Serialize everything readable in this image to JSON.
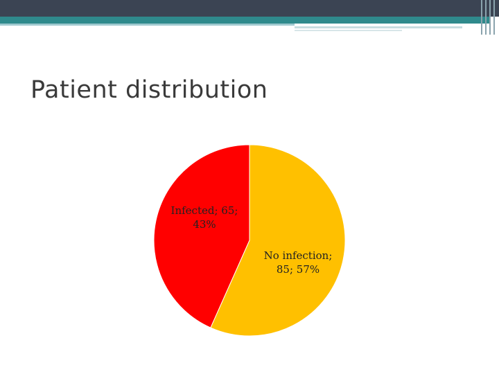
{
  "slide": {
    "title": "Patient distribution"
  },
  "colors": {
    "header_dark": "#3b4453",
    "header_teal": "#2f8a8c",
    "infected": "#ff0000",
    "no_infection": "#ffc000"
  },
  "chart_data": {
    "type": "pie",
    "title": "",
    "slices": [
      {
        "label": "No infection",
        "value": 85,
        "percent": 57,
        "color": "#ffc000",
        "label_lines": [
          "No infection;",
          "85; 57%"
        ]
      },
      {
        "label": "Infected",
        "value": 65,
        "percent": 43,
        "color": "#ff0000",
        "label_lines": [
          "Infected; 65;",
          "43%"
        ]
      }
    ],
    "start_angle_deg": 0,
    "direction": "clockwise",
    "legend": "none"
  }
}
